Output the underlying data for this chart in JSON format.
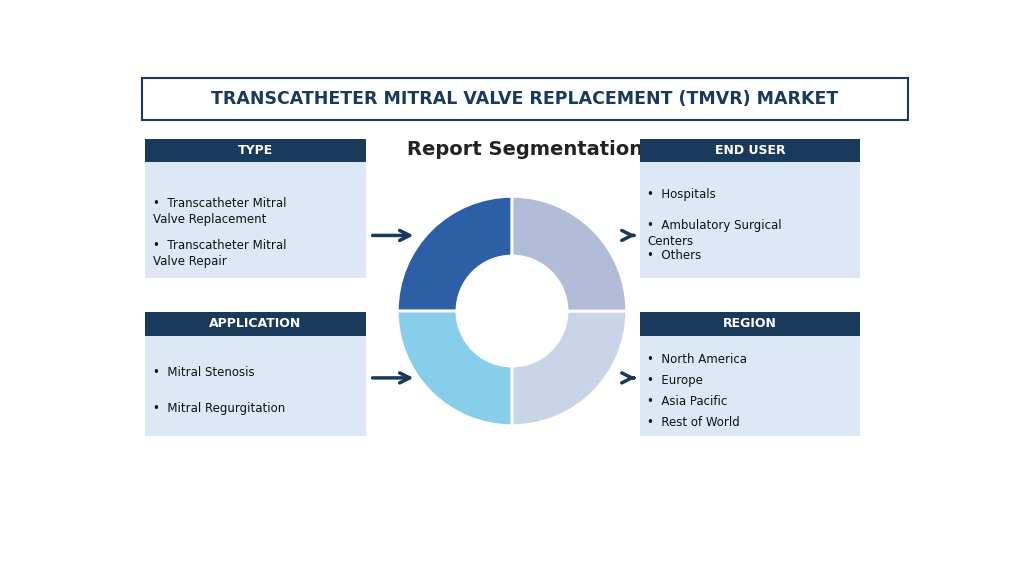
{
  "title_main": "TRANSCATHETER MITRAL VALVE REPLACEMENT (TMVR) MARKET",
  "title_sub": "Report Segmentation",
  "bg_color": "#ffffff",
  "header_bg": "#1a3a5c",
  "header_text_color": "#ffffff",
  "box_bg": "#dce8f5",
  "border_color": "#1a3a5c",
  "arrow_color": "#1a3a5c",
  "donut_colors": [
    "#2d5fa6",
    "#87ceeb",
    "#c8d4e8",
    "#b0bcd8"
  ],
  "donut_sizes": [
    25,
    25,
    25,
    25
  ],
  "sections": [
    {
      "label": "TYPE",
      "items": [
        "Transcatheter Mitral\nValve Replacement",
        "Transcatheter Mitral\nValve Repair"
      ],
      "side": "left",
      "row": 0
    },
    {
      "label": "APPLICATION",
      "items": [
        "Mitral Stenosis",
        "Mitral Regurgitation"
      ],
      "side": "left",
      "row": 1
    },
    {
      "label": "END USER",
      "items": [
        "Hospitals",
        "Ambulatory Surgical\nCenters",
        "Others"
      ],
      "side": "right",
      "row": 0
    },
    {
      "label": "REGION",
      "items": [
        "North America",
        "Europe",
        "Asia Pacific",
        "Rest of World"
      ],
      "side": "right",
      "row": 1
    }
  ]
}
